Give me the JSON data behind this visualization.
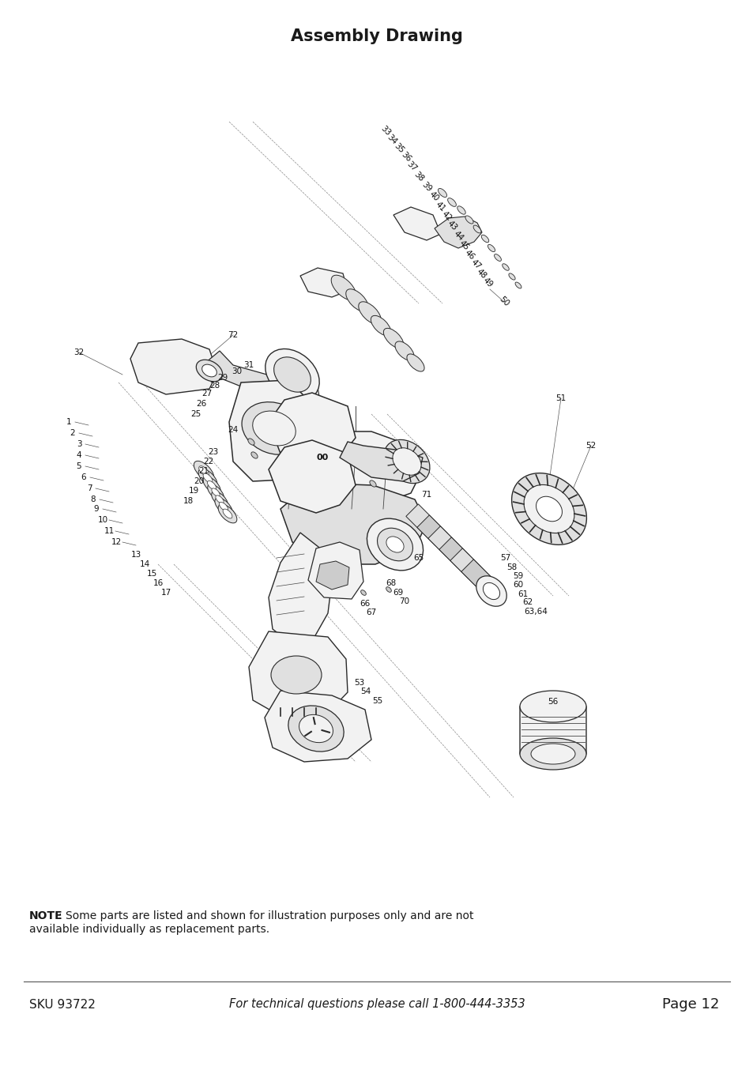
{
  "title": "Assembly Drawing",
  "title_fontsize": 15,
  "title_fontweight": "bold",
  "bg_color": "#ffffff",
  "note_bold": "NOTE",
  "note_rest": ": Some parts are listed and shown for illustration purposes only and are not\navailable individually as replacement parts.",
  "footer_sku": "SKU 93722",
  "footer_center": "For technical questions please call 1-800-444-3353",
  "footer_page": "Page 12",
  "note_fontsize": 10.0,
  "footer_fontsize": 11.0,
  "text_color": "#1a1a1a",
  "fig_width": 9.54,
  "fig_height": 13.54,
  "dpi": 100
}
